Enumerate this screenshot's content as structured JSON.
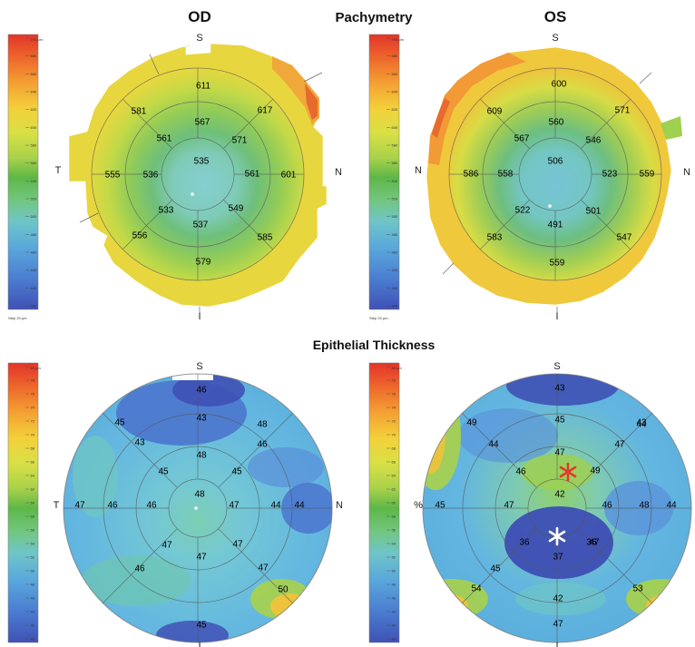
{
  "titles": {
    "od": "OD",
    "os": "OS",
    "pachymetry": "Pachymetry",
    "epithelial": "Epithelial Thickness"
  },
  "colors": {
    "scale": [
      "#e2342a",
      "#ee6a2c",
      "#f4a233",
      "#f3d13a",
      "#d8e046",
      "#a8d14a",
      "#5eb748",
      "#72c67e",
      "#6fc5c8",
      "#59a6dc",
      "#4b7cd0",
      "#3f51b5"
    ],
    "annotation_red": "#e23a2a",
    "annotation_white": "#ffffff"
  },
  "scales": {
    "pachymetry": {
      "unit_label": "700 μm",
      "ticks": [
        "700",
        "680",
        "660",
        "640",
        "620",
        "600",
        "580",
        "560",
        "540",
        "520",
        "500",
        "480",
        "460",
        "440",
        "420",
        "400"
      ],
      "footer": "Step 20 μm"
    },
    "epithelial": {
      "unit_label": "80 μm",
      "ticks": [
        "80",
        "78",
        "76",
        "74",
        "72",
        "70",
        "68",
        "66",
        "64",
        "62",
        "60",
        "58",
        "56",
        "54",
        "52",
        "50",
        "48",
        "46",
        "44",
        "42",
        "40"
      ]
    }
  },
  "maps": {
    "pachy_od": {
      "directions": {
        "top": "S",
        "bottom": "I",
        "left": "T",
        "right": "N"
      },
      "center": "535",
      "inner": [
        "567",
        "571",
        "561",
        "549",
        "537",
        "533",
        "536",
        "561"
      ],
      "outer": [
        "611",
        "617",
        "601",
        "585",
        "579",
        "556",
        "555",
        "581"
      ]
    },
    "pachy_os": {
      "directions": {
        "top": "S",
        "bottom": "I",
        "left": "N",
        "right": "N"
      },
      "center": "506",
      "inner": [
        "560",
        "546",
        "523",
        "501",
        "491",
        "522",
        "558",
        "567"
      ],
      "outer": [
        "600",
        "571",
        "559",
        "547",
        "559",
        "583",
        "586",
        "609"
      ]
    },
    "epi_od": {
      "directions": {
        "top": "S",
        "bottom": "I",
        "left": "T",
        "right": "N"
      },
      "center": "48",
      "ring1": [
        "48",
        "45",
        "47",
        "47",
        "47",
        "46",
        "45"
      ],
      "ring2": [
        "43",
        "46",
        "44",
        "47",
        "47",
        "46",
        "46",
        "43"
      ],
      "ring3": [
        "46",
        "44",
        "50",
        "45",
        "48",
        "47",
        "45"
      ]
    },
    "epi_os": {
      "directions": {
        "top": "S",
        "bottom": "I",
        "left": "%",
        "right": "N"
      },
      "center": "42",
      "ring1": [
        "47",
        "49",
        "46",
        "37",
        "47",
        "46"
      ],
      "ring2": [
        "45",
        "47",
        "48",
        "43",
        "42",
        "45",
        "47",
        "44"
      ],
      "ring3": [
        "43",
        "44",
        "44",
        "53",
        "47",
        "54",
        "45",
        "49",
        "36",
        "36"
      ]
    }
  }
}
